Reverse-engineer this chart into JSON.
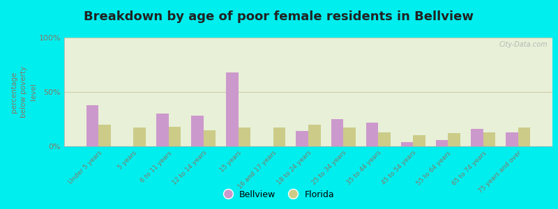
{
  "title": "Breakdown by age of poor female residents in Bellview",
  "ylabel": "percentage\nbelow poverty\nlevel",
  "categories": [
    "Under 5 years",
    "5 years",
    "6 to 11 years",
    "12 to 14 years",
    "15 years",
    "16 and 17 years",
    "18 to 24 years",
    "25 to 34 years",
    "35 to 44 years",
    "45 to 54 years",
    "55 to 64 years",
    "65 to 74 years",
    "75 years and over"
  ],
  "bellview": [
    38,
    0,
    30,
    28,
    68,
    0,
    14,
    25,
    22,
    4,
    6,
    16,
    13
  ],
  "florida": [
    20,
    17,
    18,
    15,
    17,
    17,
    20,
    17,
    13,
    10,
    12,
    13,
    17
  ],
  "bellview_color": "#cc99cc",
  "florida_color": "#cccc88",
  "bg_color": "#00eeee",
  "plot_bg_color": "#e8f0d8",
  "ylim": [
    0,
    100
  ],
  "yticks": [
    0,
    50,
    100
  ],
  "ytick_labels": [
    "0%",
    "50%",
    "100%"
  ],
  "bar_width": 0.35,
  "title_fontsize": 13,
  "legend_labels": [
    "Bellview",
    "Florida"
  ],
  "watermark": "City-Data.com",
  "tick_color": "#887766",
  "grid_color": "#ccccaa",
  "spine_color": "#aaaaaa"
}
